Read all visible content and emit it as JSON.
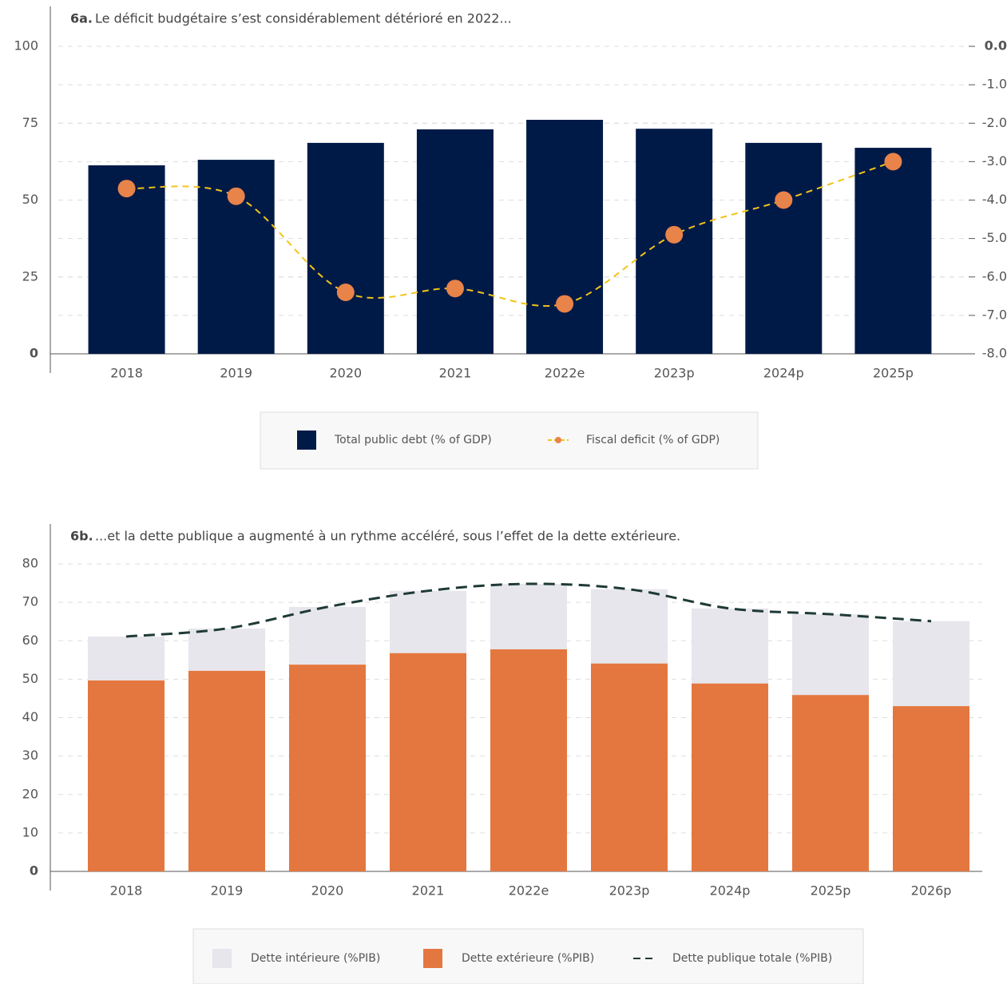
{
  "chart_data": [
    {
      "type": "bar",
      "title_prefix": "6a.",
      "title": "Le déficit budgétaire s’est considérablement détérioré en 2022...",
      "categories": [
        "2018",
        "2019",
        "2020",
        "2021",
        "2022e",
        "2023p",
        "2024p",
        "2025p"
      ],
      "series": [
        {
          "name": "Total public debt (% of GDP)",
          "type": "bar",
          "color": "#001a48",
          "values": [
            61.3,
            63.1,
            68.6,
            73.0,
            76.1,
            73.2,
            68.6,
            67.0
          ]
        },
        {
          "name": "Fiscal deficit (% of GDP)",
          "type": "line",
          "axis": "y2",
          "color": "#f2c417",
          "marker_color": "#e8834a",
          "values": [
            -3.7,
            -3.9,
            -6.4,
            -6.3,
            -6.7,
            -4.9,
            -4.0,
            -3.0
          ]
        }
      ],
      "ylim": [
        0,
        100
      ],
      "yticks": [
        0,
        25,
        50,
        75,
        100
      ],
      "y2lim": [
        -8,
        0
      ],
      "y2ticks": [
        {
          "value": 0,
          "label": "0.0"
        },
        {
          "value": -1,
          "label": "-1.0"
        },
        {
          "value": -2,
          "label": "-2.0"
        },
        {
          "value": -3,
          "label": "-3.0"
        },
        {
          "value": -4,
          "label": "-4.0"
        },
        {
          "value": -5,
          "label": "-5.0"
        },
        {
          "value": -6,
          "label": "-6.0"
        },
        {
          "value": -7,
          "label": "-7.0"
        },
        {
          "value": -8,
          "label": "-8.0"
        }
      ],
      "grid": true
    },
    {
      "type": "stacked_bar",
      "title_prefix": "6b.",
      "title": "...et la dette publique a augmenté à un rythme accéléré, sous l’effet de la dette extérieure.",
      "categories": [
        "2018",
        "2019",
        "2020",
        "2021",
        "2022e",
        "2023p",
        "2024p",
        "2025p",
        "2026p"
      ],
      "series": [
        {
          "name": "Dette intérieure (%PIB)",
          "type": "bar",
          "color": "#e6e6ec",
          "values": [
            11.4,
            11.0,
            15.0,
            16.2,
            17.0,
            19.3,
            19.5,
            21.0,
            22.1
          ]
        },
        {
          "name": "Dette extérieure (%PIB)",
          "type": "bar",
          "color": "#e4773f",
          "values": [
            49.7,
            52.2,
            53.8,
            56.8,
            57.8,
            54.1,
            48.9,
            45.9,
            43.0
          ]
        },
        {
          "name": "Dette publique totale (%PIB)",
          "type": "line",
          "color": "#1f3a36",
          "values": [
            61.1,
            63.2,
            68.8,
            73.0,
            74.8,
            73.4,
            68.4,
            66.9,
            65.1
          ]
        }
      ],
      "ylim": [
        0,
        80
      ],
      "yticks": [
        0,
        10,
        20,
        30,
        40,
        50,
        60,
        70,
        80
      ],
      "grid": true
    }
  ]
}
